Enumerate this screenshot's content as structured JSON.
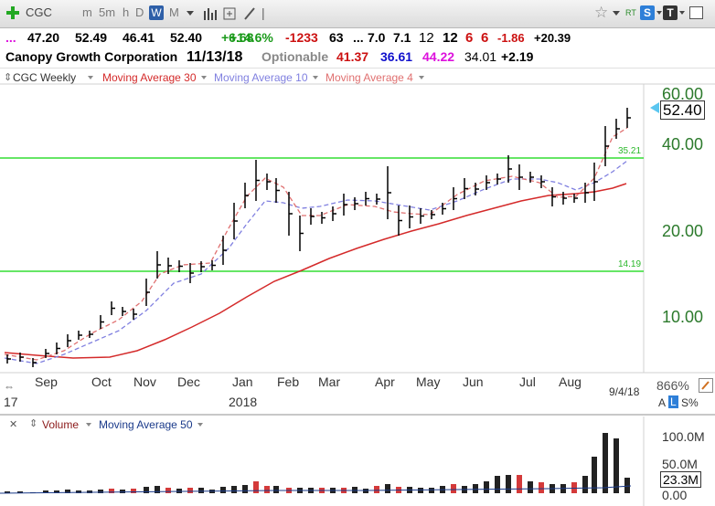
{
  "toolbar": {
    "symbol": "CGC",
    "periods": [
      "m",
      "5m",
      "h",
      "D",
      "W",
      "M"
    ],
    "active_period": "W",
    "rt_label": "RT",
    "s_label": "S",
    "t_label": "T"
  },
  "quote": {
    "dots": "...",
    "open": "47.20",
    "high": "52.49",
    "low": "46.41",
    "close": "52.40",
    "change": "+6.68",
    "pct": "+14.6%",
    "v1": "-1233",
    "v2": "63",
    "v3": "...",
    "v4": "7.0",
    "v5": "7.1",
    "v6": "12",
    "v7": "12",
    "v8": "6",
    "v9": "6",
    "v10": "-1.86",
    "v11": "+20.39"
  },
  "company": {
    "name": "Canopy Growth Corporation",
    "date": "11/13/18",
    "optionable": "Optionable",
    "n1": "41.37",
    "n2": "36.61",
    "n3": "44.22",
    "n4": "34.01",
    "n5": "+2.19"
  },
  "legend": {
    "series": "CGC Weekly",
    "ma30": "Moving Average 30",
    "ma10": "Moving Average 10",
    "ma4": "Moving Average 4"
  },
  "price_axis": [
    "60.00",
    "40.00",
    "20.00",
    "10.00"
  ],
  "last_price": "52.40",
  "levels": [
    "35.21",
    "14.19"
  ],
  "months": [
    "Sep",
    "Oct",
    "Nov",
    "Dec",
    "Jan",
    "Feb",
    "Mar",
    "Apr",
    "May",
    "Jun",
    "Jul",
    "Aug"
  ],
  "year_start": "17",
  "year_label": "2018",
  "zoom": "866%",
  "end_date": "9/4/18",
  "scale_buttons": [
    "A",
    "L",
    "S%"
  ],
  "volume_legend": {
    "label": "Volume",
    "ma": "Moving Average 50"
  },
  "volume_axis": [
    "100.0M",
    "50.0M",
    "0.00"
  ],
  "volume_last": "23.3M",
  "colors": {
    "up": "#1a9a1a",
    "down": "#cc1111",
    "blue": "#1010cc",
    "magenta": "#dd10dd",
    "ma30": "#d42a2a",
    "ma10": "#8080e0",
    "ma4": "#e07070",
    "level": "#33dd33"
  }
}
